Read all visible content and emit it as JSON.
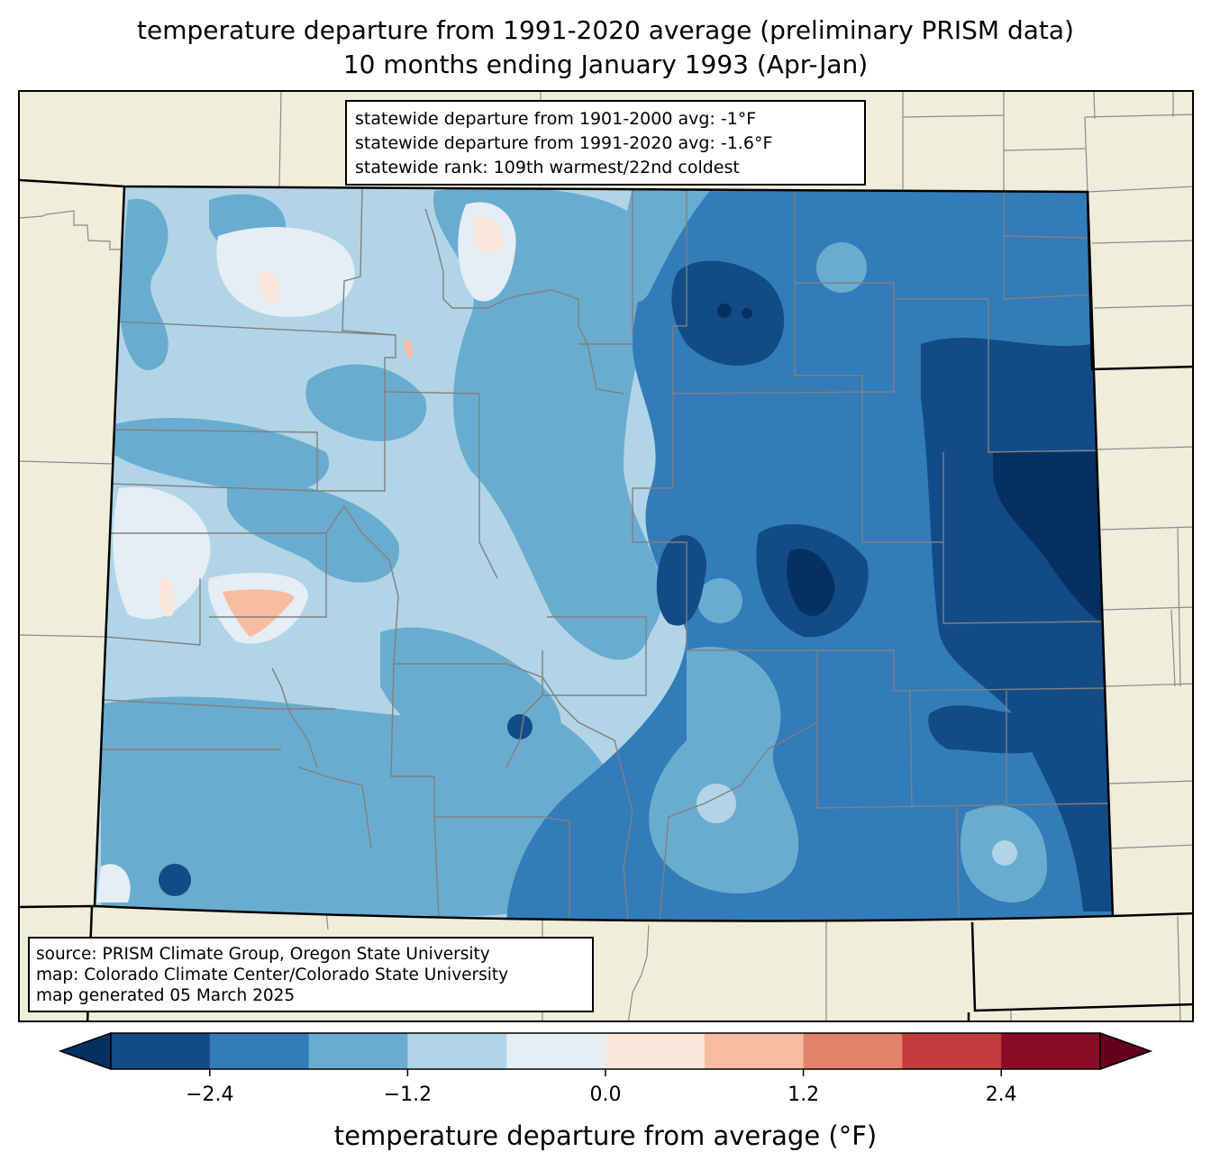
{
  "title": {
    "line1": "temperature departure from 1991-2020 average (preliminary PRISM data)",
    "line2": "10 months ending January 1993 (Apr-Jan)"
  },
  "stats": {
    "line1": "statewide departure from 1901-2000 avg: -1°F",
    "line2": "statewide departure from 1991-2020 avg: -1.6°F",
    "line3": "statewide rank: 109th warmest/22nd coldest"
  },
  "credits": {
    "line1": "source: PRISM Climate Group, Oregon State University",
    "line2": "map: Colorado Climate Center/Colorado State University",
    "line3": "map generated 05 March 2025"
  },
  "map": {
    "region": "Colorado",
    "background_color": "#efeedb",
    "county_line_color": "#808080",
    "state_line_color": "#000000"
  },
  "colorbar": {
    "label": "temperature departure from average (°F)",
    "extend": "both",
    "under_color": "#053061",
    "over_color": "#67001f",
    "bins": [
      {
        "from": -3.0,
        "to": -2.4,
        "color": "#134b87"
      },
      {
        "from": -2.4,
        "to": -1.8,
        "color": "#327cb9"
      },
      {
        "from": -1.8,
        "to": -1.2,
        "color": "#6aacd0"
      },
      {
        "from": -1.2,
        "to": -0.6,
        "color": "#b1d5e7"
      },
      {
        "from": -0.6,
        "to": 0.0,
        "color": "#e4eef4"
      },
      {
        "from": 0.0,
        "to": 0.6,
        "color": "#fae7dc"
      },
      {
        "from": 0.6,
        "to": 1.2,
        "color": "#f8bca0"
      },
      {
        "from": 1.2,
        "to": 1.8,
        "color": "#e4816a"
      },
      {
        "from": 1.8,
        "to": 2.4,
        "color": "#c13b3c"
      },
      {
        "from": 2.4,
        "to": 3.0,
        "color": "#8a0b25"
      }
    ],
    "ticks": [
      {
        "value": -2.4,
        "label": "−2.4"
      },
      {
        "value": -1.2,
        "label": "−1.2"
      },
      {
        "value": 0.0,
        "label": "0.0"
      },
      {
        "value": 1.2,
        "label": "1.2"
      },
      {
        "value": 2.4,
        "label": "2.4"
      }
    ]
  }
}
